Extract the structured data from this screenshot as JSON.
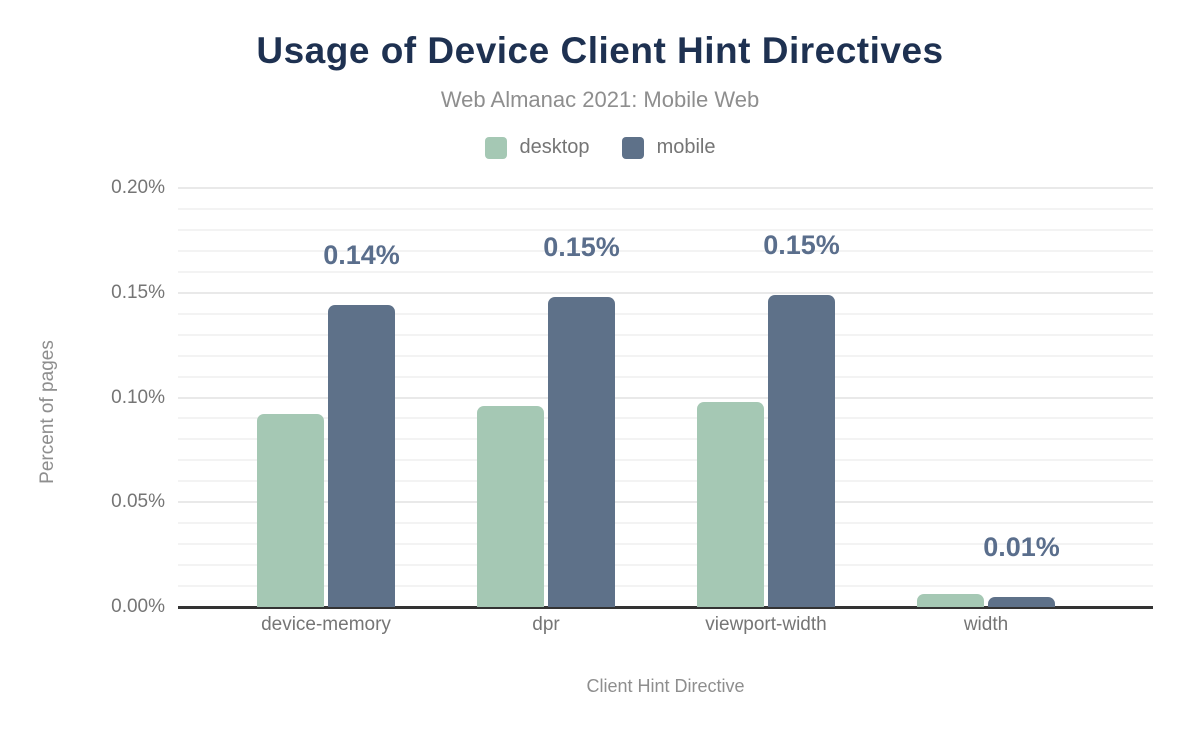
{
  "header": {
    "title": "Usage of Device Client Hint Directives",
    "subtitle": "Web Almanac 2021: Mobile Web"
  },
  "legend": {
    "items": [
      {
        "label": "desktop",
        "color": "#a5c8b4"
      },
      {
        "label": "mobile",
        "color": "#5e7189"
      }
    ]
  },
  "chart_data": {
    "type": "bar",
    "title": "Usage of Device Client Hint Directives",
    "subtitle": "Web Almanac 2021: Mobile Web",
    "xlabel": "Client Hint Directive",
    "ylabel": "Percent of pages",
    "categories": [
      "device-memory",
      "dpr",
      "viewport-width",
      "width"
    ],
    "series": [
      {
        "name": "desktop",
        "color": "#a5c8b4",
        "values": [
          0.092,
          0.096,
          0.098,
          0.006
        ]
      },
      {
        "name": "mobile",
        "color": "#5e7189",
        "values": [
          0.144,
          0.148,
          0.149,
          0.005
        ]
      }
    ],
    "bar_labels": {
      "series": "mobile",
      "labels": [
        "0.14%",
        "0.15%",
        "0.15%",
        "0.01%"
      ],
      "color": "#5a6e8c"
    },
    "ylim": [
      0,
      0.2
    ],
    "y_ticks": [
      {
        "value": 0,
        "label": "0.00%"
      },
      {
        "value": 0.05,
        "label": "0.05%"
      },
      {
        "value": 0.1,
        "label": "0.10%"
      },
      {
        "value": 0.15,
        "label": "0.15%"
      },
      {
        "value": 0.2,
        "label": "0.20%"
      }
    ],
    "minor_grid_step": 0.01,
    "grid": true,
    "legend_position": "top"
  },
  "colors": {
    "title": "#1e3151",
    "subtitle": "#8e8e8e",
    "axis_text": "#757575",
    "grid_major": "#e9e9e9",
    "grid_minor": "#f3f3f3",
    "baseline": "#333333",
    "background": "#ffffff"
  }
}
